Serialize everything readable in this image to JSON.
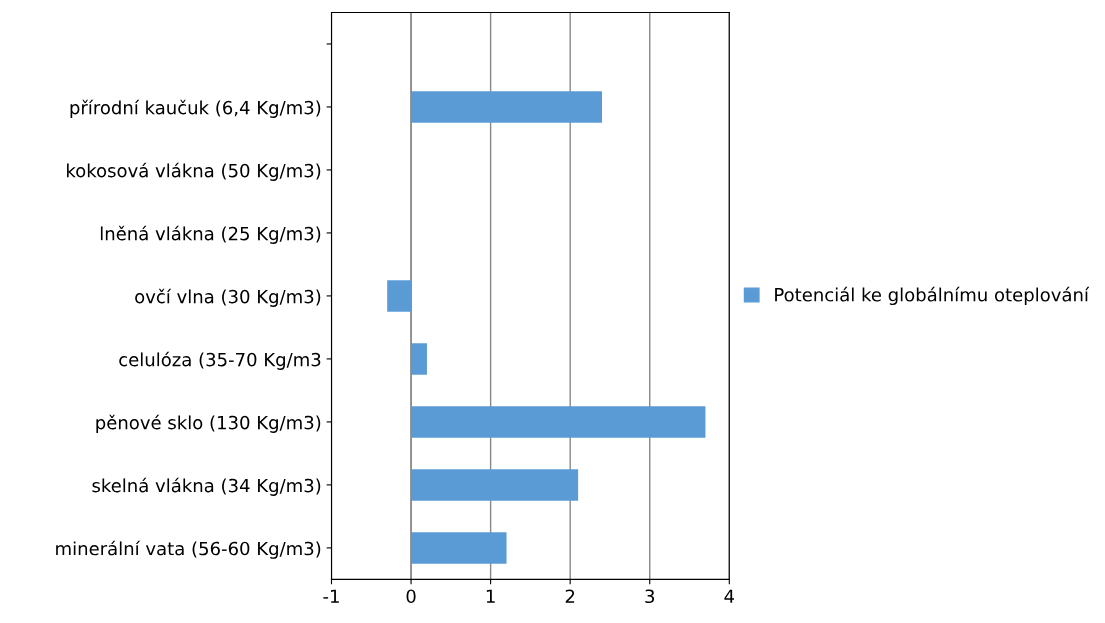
{
  "chart_data": {
    "type": "bar",
    "orientation": "horizontal",
    "categories": [
      null,
      "přírodní kaučuk (6,4 Kg/m3)",
      "kokosová vlákna (50 Kg/m3)",
      "lněná vlákna (25 Kg/m3)",
      "ovčí vlna (30 Kg/m3)",
      "celulóza (35-70 Kg/m3",
      "pěnové sklo (130 Kg/m3)",
      "skelná vlákna (34 Kg/m3)",
      "minerální vata (56-60 Kg/m3)"
    ],
    "series": [
      {
        "name": "Potenciál ke globálnímu oteplování",
        "color": "#5b9bd5",
        "values": [
          null,
          2.4,
          0,
          0,
          -0.3,
          0.2,
          3.7,
          2.1,
          1.2
        ]
      }
    ],
    "xlim": [
      -1,
      4
    ],
    "xticks": [
      "-1",
      0,
      1,
      2,
      3,
      4
    ],
    "grid": "x",
    "legend": "right"
  }
}
